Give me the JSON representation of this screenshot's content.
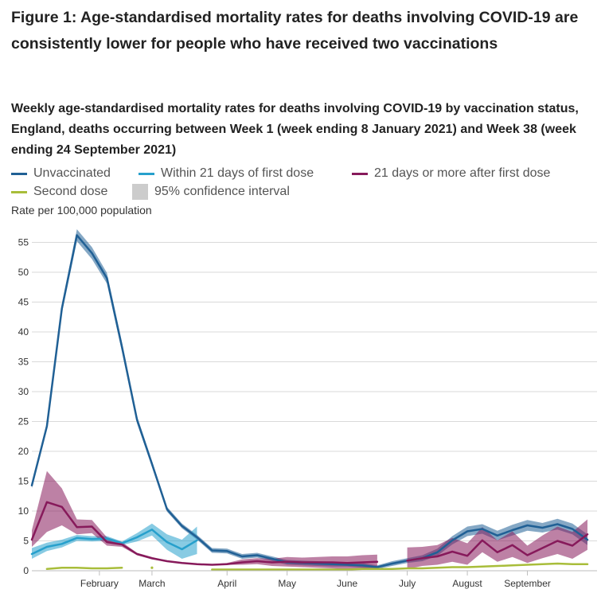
{
  "title": "Figure 1: Age-standardised mortality rates for deaths involving COVID-19 are consistently lower for people who have received two vaccinations",
  "subtitle": "Weekly age-standardised mortality rates for deaths involving COVID-19 by vaccination status, England, deaths occurring between Week 1 (week ending 8 January 2021) and Week 38 (week ending 24 September 2021)",
  "legend": {
    "unvaccinated": "Unvaccinated",
    "within21": "Within 21 days of first dose",
    "after21": "21 days or more after first dose",
    "second": "Second dose",
    "ci": "95% confidence interval"
  },
  "colors": {
    "unvaccinated": "#206095",
    "within21": "#27a0cc",
    "after21": "#871a5b",
    "second": "#a8bd3a",
    "ci": "#cccccc",
    "grid": "#d9d9d9",
    "axis": "#bebebe"
  },
  "chart_data": {
    "type": "line",
    "title": "Weekly age-standardised mortality rates for deaths involving COVID-19 by vaccination status",
    "ylabel": "Rate per 100,000 population",
    "xlabel": "",
    "ylim": [
      0,
      58
    ],
    "yticks": [
      0,
      5,
      10,
      15,
      20,
      25,
      30,
      35,
      40,
      45,
      50,
      55
    ],
    "xlim": [
      1,
      38
    ],
    "x_ticks": [
      {
        "label": "February",
        "week": 5.5
      },
      {
        "label": "March",
        "week": 9
      },
      {
        "label": "April",
        "week": 14
      },
      {
        "label": "May",
        "week": 18
      },
      {
        "label": "June",
        "week": 22
      },
      {
        "label": "July",
        "week": 26
      },
      {
        "label": "August",
        "week": 30
      },
      {
        "label": "September",
        "week": 34
      }
    ],
    "grid": true,
    "series": [
      {
        "key": "unvaccinated",
        "name": "Unvaccinated",
        "x": [
          1,
          2,
          3,
          4,
          5,
          6,
          7,
          8,
          9,
          10,
          11,
          12,
          13,
          14,
          15,
          16,
          17,
          18,
          19,
          20,
          21,
          22,
          23,
          24,
          25,
          26,
          27,
          28,
          29,
          30,
          31,
          32,
          33,
          34,
          35,
          36,
          37,
          38
        ],
        "values": [
          14.3,
          24.2,
          43.9,
          56.2,
          53.2,
          49.0,
          37.5,
          25.3,
          17.9,
          10.3,
          7.5,
          5.6,
          3.4,
          3.3,
          2.4,
          2.6,
          2.0,
          1.4,
          1.3,
          1.2,
          1.1,
          1.0,
          0.9,
          0.6,
          1.2,
          1.7,
          2.1,
          3.1,
          5.1,
          6.6,
          7.0,
          5.9,
          6.8,
          7.6,
          7.2,
          7.8,
          7.0,
          5.2
        ],
        "lower": [
          13.8,
          23.6,
          43.1,
          55.2,
          52.2,
          48.1,
          36.7,
          24.7,
          17.4,
          9.9,
          7.1,
          5.2,
          3.0,
          2.9,
          2.0,
          2.2,
          1.6,
          1.0,
          0.9,
          0.8,
          0.7,
          0.7,
          0.5,
          0.3,
          0.8,
          1.3,
          1.6,
          2.5,
          4.4,
          5.8,
          6.2,
          5.1,
          5.9,
          6.7,
          6.4,
          6.9,
          6.1,
          4.3
        ],
        "upper": [
          14.8,
          24.8,
          44.7,
          57.2,
          54.2,
          49.9,
          38.3,
          25.9,
          18.4,
          10.7,
          7.9,
          6.0,
          3.8,
          3.7,
          2.8,
          3.0,
          2.4,
          1.8,
          1.7,
          1.6,
          1.5,
          1.3,
          1.3,
          0.9,
          1.6,
          2.1,
          2.6,
          3.7,
          5.8,
          7.4,
          7.8,
          6.7,
          7.7,
          8.5,
          8.0,
          8.7,
          7.9,
          6.1
        ]
      },
      {
        "key": "within21",
        "name": "Within 21 days of first dose",
        "x": [
          1,
          2,
          3,
          4,
          5,
          6,
          7,
          8,
          9,
          10,
          11,
          12
        ],
        "values": [
          2.8,
          4.0,
          4.5,
          5.5,
          5.3,
          5.4,
          4.6,
          5.6,
          6.9,
          4.8,
          3.6,
          5.1
        ],
        "lower": [
          2.0,
          3.3,
          3.9,
          5.0,
          4.9,
          5.0,
          4.3,
          4.9,
          5.9,
          3.5,
          2.0,
          2.8
        ],
        "upper": [
          3.8,
          4.7,
          5.2,
          6.0,
          5.8,
          5.8,
          4.9,
          6.3,
          7.9,
          6.1,
          5.2,
          7.4
        ]
      },
      {
        "key": "after21",
        "name": "21 days or more after first dose",
        "segments": [
          {
            "x": [
              1,
              2,
              3,
              4,
              5,
              6,
              7,
              8,
              9,
              10,
              11,
              12,
              13,
              14,
              15,
              16,
              17,
              18,
              19,
              20,
              21,
              22,
              23,
              24
            ],
            "values": [
              5.2,
              11.5,
              10.7,
              7.3,
              7.4,
              4.8,
              4.4,
              2.8,
              2.1,
              1.6,
              1.3,
              1.1,
              1.0,
              1.1,
              1.4,
              1.6,
              1.4,
              1.5,
              1.4,
              1.4,
              1.4,
              1.3,
              1.4,
              1.5
            ],
            "lower": [
              4.0,
              6.5,
              7.6,
              6.1,
              6.3,
              4.2,
              4.0,
              2.6,
              1.9,
              1.5,
              1.2,
              1.0,
              0.9,
              1.0,
              1.0,
              1.1,
              0.8,
              0.7,
              0.6,
              0.5,
              0.4,
              0.2,
              0.2,
              0.3
            ],
            "upper": [
              6.8,
              16.7,
              13.8,
              8.6,
              8.5,
              5.6,
              4.8,
              3.0,
              2.3,
              1.7,
              1.4,
              1.2,
              1.1,
              1.3,
              1.9,
              2.1,
              2.0,
              2.3,
              2.2,
              2.3,
              2.4,
              2.4,
              2.6,
              2.7
            ]
          },
          {
            "x": [
              26,
              27,
              28,
              29,
              30,
              31,
              32,
              33,
              34,
              35,
              36,
              37,
              38
            ],
            "values": [
              1.7,
              2.1,
              2.4,
              3.2,
              2.5,
              5.1,
              3.1,
              4.3,
              2.6,
              3.8,
              5.0,
              4.2,
              6.1
            ],
            "lower": [
              0.3,
              0.8,
              1.0,
              1.5,
              1.0,
              3.1,
              1.5,
              2.3,
              1.3,
              2.1,
              2.8,
              2.0,
              3.5
            ],
            "upper": [
              3.9,
              4.0,
              4.3,
              5.5,
              4.6,
              7.3,
              5.1,
              6.6,
              4.2,
              5.9,
              7.4,
              6.5,
              8.6
            ]
          }
        ]
      },
      {
        "key": "second",
        "name": "Second dose",
        "segments": [
          {
            "x": [
              2,
              3,
              4,
              5,
              6,
              7
            ],
            "values": [
              0.3,
              0.5,
              0.5,
              0.4,
              0.4,
              0.5
            ]
          },
          {
            "x": [
              9
            ],
            "values": [
              0.5
            ]
          },
          {
            "x": [
              13,
              14,
              15,
              16,
              17,
              18,
              19,
              20,
              21,
              22,
              23,
              24,
              25,
              26,
              27,
              28,
              29,
              30,
              31,
              32,
              33,
              34,
              35,
              36,
              37,
              38
            ],
            "values": [
              0.2,
              0.2,
              0.2,
              0.2,
              0.2,
              0.2,
              0.2,
              0.2,
              0.2,
              0.2,
              0.3,
              0.3,
              0.3,
              0.4,
              0.4,
              0.5,
              0.6,
              0.6,
              0.7,
              0.8,
              0.9,
              1.0,
              1.1,
              1.2,
              1.1,
              1.1
            ]
          }
        ]
      }
    ]
  }
}
